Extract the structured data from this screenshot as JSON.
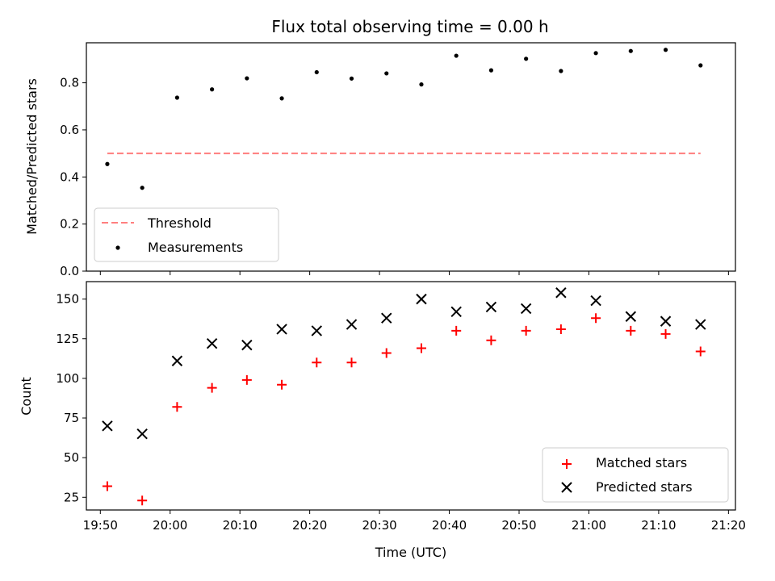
{
  "chart_data": [
    {
      "type": "scatter",
      "title": "Flux total observing time = 0.00 h",
      "xlabel": "",
      "ylabel": "Matched/Predicted stars",
      "xlim": [
        "19:48",
        "21:21"
      ],
      "ylim": [
        0.0,
        0.97
      ],
      "yticks": [
        0.0,
        0.2,
        0.4,
        0.6,
        0.8
      ],
      "ytick_labels": [
        "0.0",
        "0.2",
        "0.4",
        "0.6",
        "0.8"
      ],
      "legend_position": "lower-left",
      "series": [
        {
          "name": "Threshold",
          "kind": "dashed-line",
          "color": "#ff7f7f",
          "x": [
            "19:51",
            "21:16"
          ],
          "values": [
            0.5,
            0.5
          ]
        },
        {
          "name": "Measurements",
          "kind": "dot",
          "color": "#000000",
          "x": [
            "19:51",
            "19:56",
            "20:01",
            "20:06",
            "20:11",
            "20:16",
            "20:21",
            "20:26",
            "20:31",
            "20:36",
            "20:41",
            "20:46",
            "20:51",
            "20:56",
            "21:01",
            "21:06",
            "21:11",
            "21:16"
          ],
          "values": [
            0.455,
            0.354,
            0.737,
            0.772,
            0.819,
            0.734,
            0.845,
            0.818,
            0.84,
            0.793,
            0.915,
            0.853,
            0.902,
            0.85,
            0.926,
            0.935,
            0.94,
            0.874
          ]
        }
      ]
    },
    {
      "type": "scatter",
      "title": "",
      "xlabel": "Time (UTC)",
      "ylabel": "Count",
      "xlim": [
        "19:48",
        "21:21"
      ],
      "ylim": [
        17,
        161
      ],
      "yticks": [
        25,
        50,
        75,
        100,
        125,
        150
      ],
      "ytick_labels": [
        "25",
        "50",
        "75",
        "100",
        "125",
        "150"
      ],
      "xticks": [
        "19:50",
        "20:00",
        "20:10",
        "20:20",
        "20:30",
        "20:40",
        "20:50",
        "21:00",
        "21:10",
        "21:20"
      ],
      "legend_position": "lower-right",
      "series": [
        {
          "name": "Matched stars",
          "kind": "plus",
          "color": "#ff0000",
          "x": [
            "19:51",
            "19:56",
            "20:01",
            "20:06",
            "20:11",
            "20:16",
            "20:21",
            "20:26",
            "20:31",
            "20:36",
            "20:41",
            "20:46",
            "20:51",
            "20:56",
            "21:01",
            "21:06",
            "21:11",
            "21:16"
          ],
          "values": [
            32,
            23,
            82,
            94,
            99,
            96,
            110,
            110,
            116,
            119,
            130,
            124,
            130,
            131,
            138,
            130,
            128,
            117
          ]
        },
        {
          "name": "Predicted stars",
          "kind": "x",
          "color": "#000000",
          "x": [
            "19:51",
            "19:56",
            "20:01",
            "20:06",
            "20:11",
            "20:16",
            "20:21",
            "20:26",
            "20:31",
            "20:36",
            "20:41",
            "20:46",
            "20:51",
            "20:56",
            "21:01",
            "21:06",
            "21:11",
            "21:16"
          ],
          "values": [
            70,
            65,
            111,
            122,
            121,
            131,
            130,
            134,
            138,
            150,
            142,
            145,
            144,
            154,
            149,
            139,
            136,
            134
          ]
        }
      ]
    }
  ]
}
